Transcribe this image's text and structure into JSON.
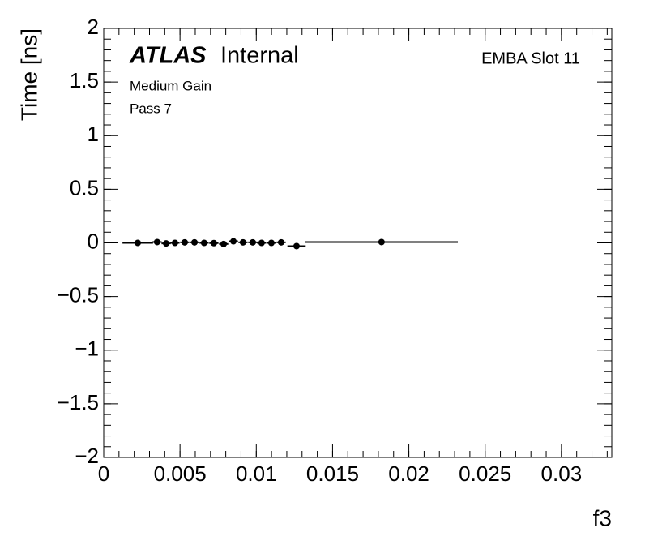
{
  "chart_data": {
    "type": "scatter",
    "y_label": "Time [ns]",
    "x_label": "f3",
    "experiment": "ATLAS",
    "status": "Internal",
    "module": "EMBA Slot 11",
    "gain": "Medium Gain",
    "pass": "Pass 7",
    "color": "#000000",
    "x": [
      0.00223,
      0.0035,
      0.00409,
      0.00467,
      0.00531,
      0.00595,
      0.00658,
      0.00722,
      0.00786,
      0.0085,
      0.00913,
      0.00977,
      0.01035,
      0.01099,
      0.01163,
      0.01264,
      0.01821
    ],
    "xerr": [
      0.001,
      0.0003,
      0.0003,
      0.0003,
      0.0003,
      0.0003,
      0.0003,
      0.0003,
      0.0003,
      0.0003,
      0.0003,
      0.0003,
      0.0003,
      0.0003,
      0.0003,
      0.0006,
      0.005
    ],
    "values": [
      0,
      0.008,
      -0.005,
      0,
      0.005,
      0.005,
      0,
      -0.002,
      -0.01,
      0.015,
      0.005,
      0.005,
      0,
      0,
      0.005,
      -0.03,
      0.008
    ],
    "xlim": [
      0,
      0.0333
    ],
    "ylim": [
      -2,
      2
    ],
    "xticks": [
      0,
      0.005,
      0.01,
      0.015,
      0.02,
      0.025,
      0.03
    ],
    "yticks": [
      {
        "value": -2,
        "label": "−2"
      },
      {
        "value": -1.5,
        "label": "−1.5"
      },
      {
        "value": -1,
        "label": "−1"
      },
      {
        "value": -0.5,
        "label": "−0.5"
      },
      0,
      0.5,
      1,
      1.5,
      2
    ]
  }
}
